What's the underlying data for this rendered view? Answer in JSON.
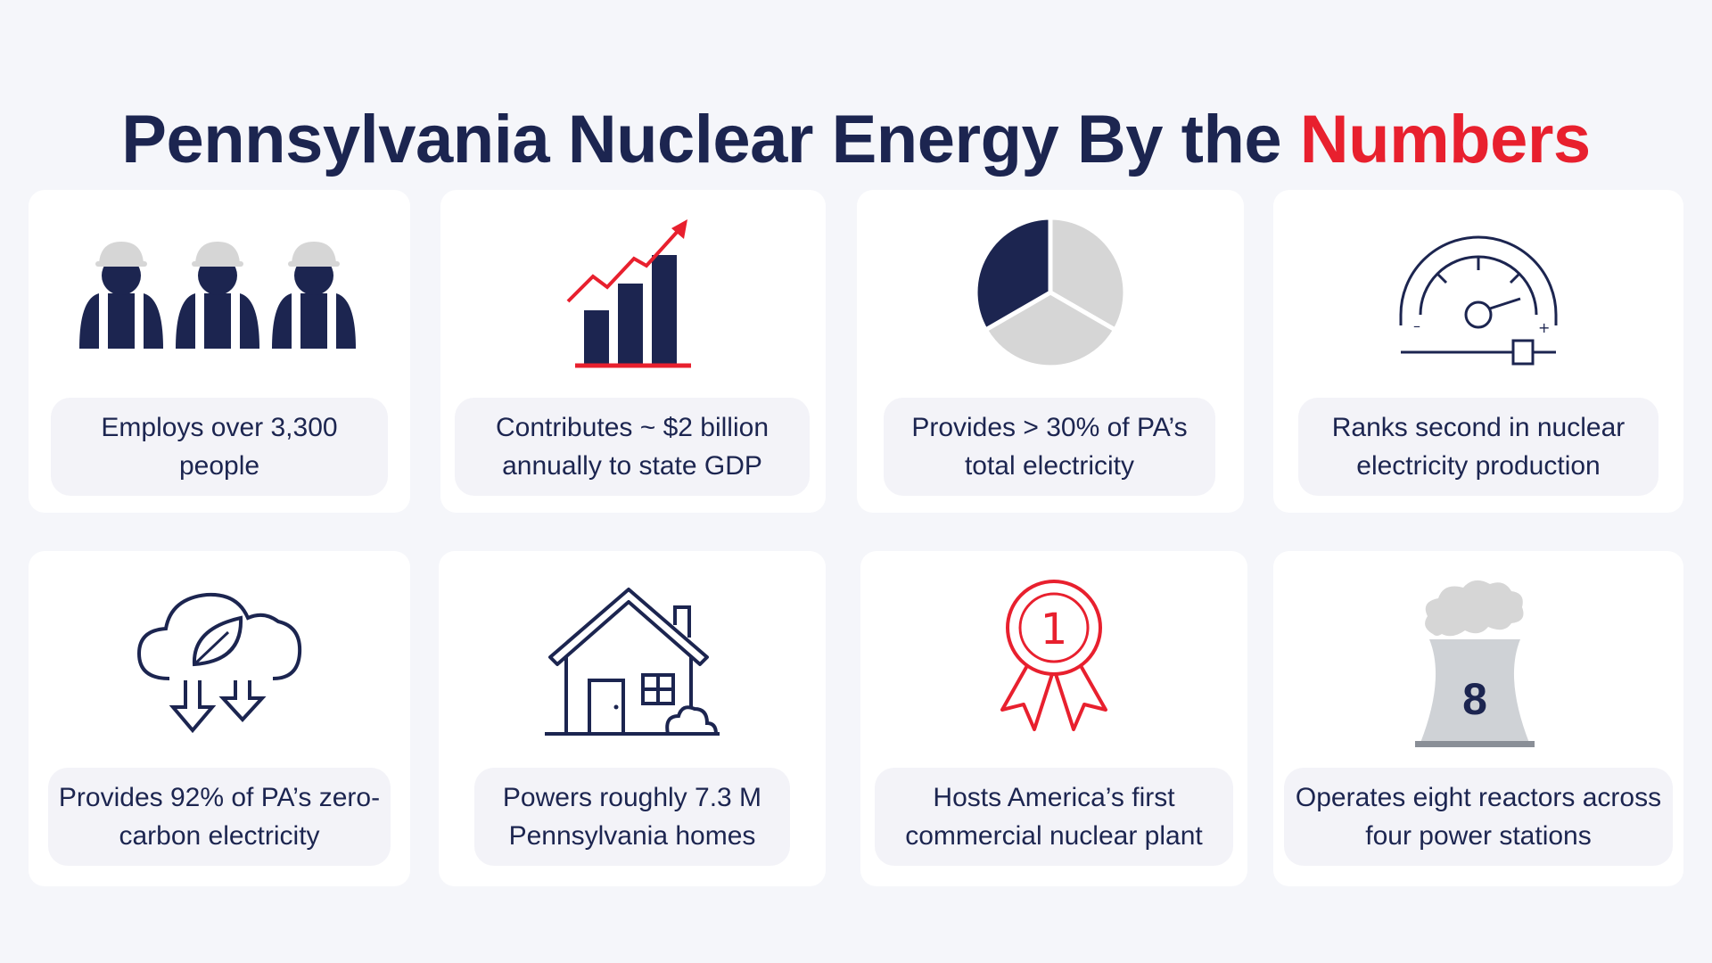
{
  "title": {
    "prefix": "Pennsylvania Nuclear Energy By the",
    "accent": "Numbers"
  },
  "colors": {
    "navy": "#1c2550",
    "red": "#e8202e",
    "gray": "#d6d6d6",
    "background": "#f5f6fa"
  },
  "cards": [
    {
      "icon": "workers-icon",
      "caption": "Employs over 3,300 people"
    },
    {
      "icon": "growth-chart-icon",
      "caption": "Contributes ~ $2 billion annually to state GDP"
    },
    {
      "icon": "pie-chart-icon",
      "caption": "Provides > 30% of PA’s total electricity"
    },
    {
      "icon": "gauge-icon",
      "caption": "Ranks second in nuclear electricity production"
    },
    {
      "icon": "cloud-leaf-icon",
      "caption": "Provides 92% of PA’s zero-carbon electricity"
    },
    {
      "icon": "house-icon",
      "caption": "Powers roughly 7.3 M Pennsylvania homes"
    },
    {
      "icon": "award-ribbon-icon",
      "caption": "Hosts America’s first commercial nuclear plant",
      "badge": "1"
    },
    {
      "icon": "cooling-tower-icon",
      "caption": "Operates eight reactors across four power stations",
      "badge": "8"
    }
  ]
}
